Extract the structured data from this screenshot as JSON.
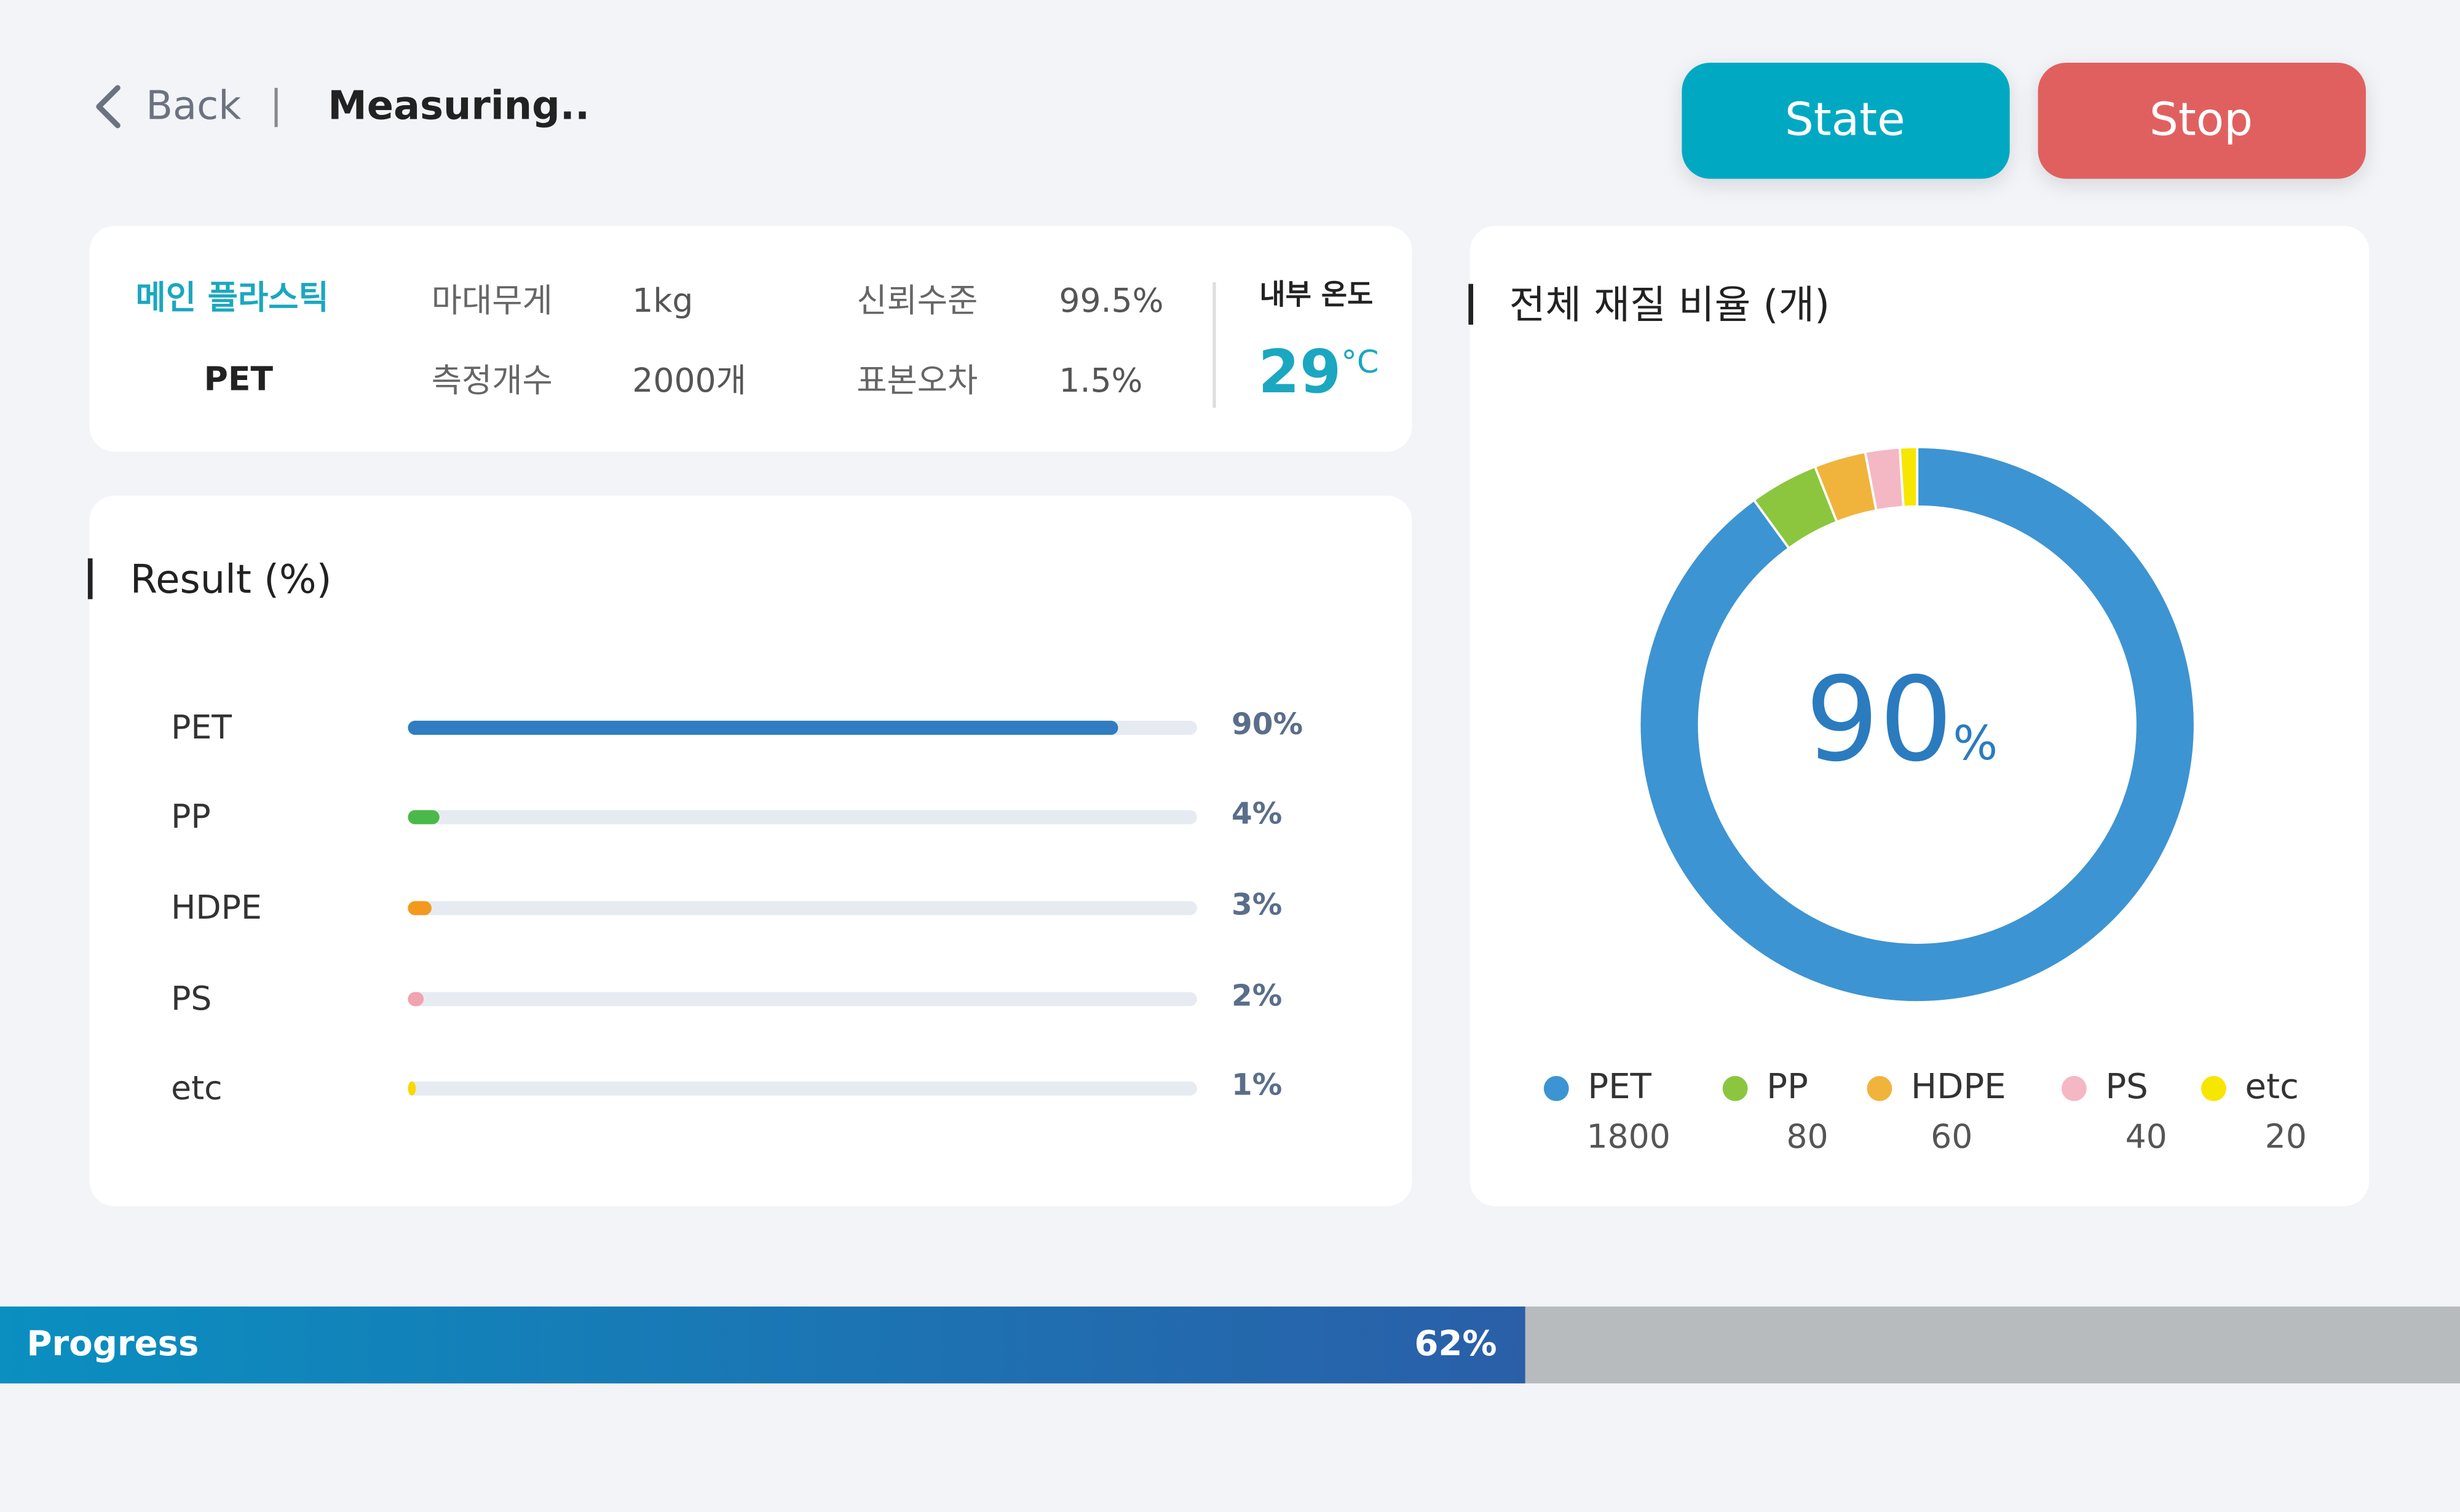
{
  "header": {
    "back": "Back",
    "title": "Measuring..",
    "buttons": [
      "State",
      "Stop"
    ]
  },
  "info": {
    "main_label": "메인 플라스틱",
    "main_value": "PET",
    "fields": [
      {
        "label": "마대무게",
        "value": "1kg"
      },
      {
        "label": "측정개수",
        "value": "2000개"
      },
      {
        "label": "신뢰수준",
        "value": "99.5%"
      },
      {
        "label": "표본오차",
        "value": "1.5%"
      }
    ],
    "temperature": {
      "label": "내부 온도",
      "value": "29",
      "unit": "°C"
    }
  },
  "result": {
    "title": "Result (%)",
    "items": [
      {
        "name": "PET",
        "value": 90,
        "label": "90%",
        "color": "#2f7dc0"
      },
      {
        "name": "PP",
        "value": 4,
        "label": "4%",
        "color": "#4bb84a"
      },
      {
        "name": "HDPE",
        "value": 3,
        "label": "3%",
        "color": "#f3991e"
      },
      {
        "name": "PS",
        "value": 2,
        "label": "2%",
        "color": "#f0a3b0"
      },
      {
        "name": "etc",
        "value": 1,
        "label": "1%",
        "color": "#f8d800"
      }
    ]
  },
  "ratio": {
    "title": "전체 재질 비율 (개)",
    "center_value": 90,
    "center_unit": "%",
    "items": [
      {
        "name": "PET",
        "count": 1800,
        "color": "#3d94d2"
      },
      {
        "name": "PP",
        "count": 80,
        "color": "#8cc63f"
      },
      {
        "name": "HDPE",
        "count": 60,
        "color": "#f0b43c"
      },
      {
        "name": "PS",
        "count": 40,
        "color": "#f4b8c4"
      },
      {
        "name": "etc",
        "count": 20,
        "color": "#f7e600"
      }
    ]
  },
  "progress": {
    "label": "Progress",
    "value": 62,
    "value_label": "62%"
  }
}
